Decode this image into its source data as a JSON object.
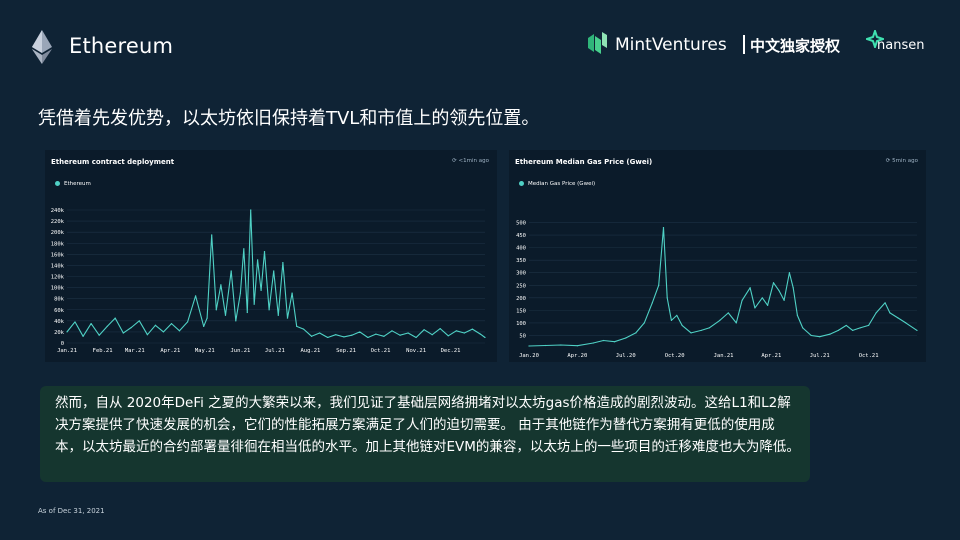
{
  "header": {
    "title": "Ethereum",
    "partner_name": "MintVentures",
    "exclusive_label": "中文独家授权",
    "nansen_name": "nansen"
  },
  "headline": "凭借着先发优势，以太坊依旧保持着TVL和市值上的领先位置。",
  "note": "然而，自从 2020年DeFi 之夏的大繁荣以来，我们见证了基础层网络拥堵对以太坊gas价格造成的剧烈波动。这给L1和L2解决方案提供了快速发展的机会，它们的性能拓展方案满足了人们的迫切需要。 由于其他链作为替代方案拥有更低的使用成本，以太坊最近的合约部署量徘徊在相当低的水平。加上其他链对EVM的兼容，以太坊上的一些项目的迁移难度也大为降低。",
  "footnote": "As of Dec 31, 2021",
  "colors": {
    "line": "#4fd1c5",
    "panel": "#0b1b2a",
    "background": "#0f2335",
    "note_box": "#15362f"
  },
  "chart_data": [
    {
      "type": "line",
      "title": "Ethereum contract deployment",
      "updated": "<1min ago",
      "legend": "Ethereum",
      "x_ticks": [
        "Jan.21",
        "Feb.21",
        "Mar.21",
        "Apr.21",
        "May.21",
        "Jun.21",
        "Jul.21",
        "Aug.21",
        "Sep.21",
        "Oct.21",
        "Nov.21",
        "Dec.21"
      ],
      "y_ticks": [
        "0",
        "20k",
        "40k",
        "60k",
        "80k",
        "100k",
        "120k",
        "140k",
        "160k",
        "180k",
        "200k",
        "220k",
        "240k"
      ],
      "ylim": [
        0,
        240000
      ],
      "x_range": [
        "2021-01-01",
        "2021-12-31"
      ],
      "x": [
        "2021-01-01",
        "2021-01-08",
        "2021-01-15",
        "2021-01-22",
        "2021-01-29",
        "2021-02-05",
        "2021-02-12",
        "2021-02-19",
        "2021-02-26",
        "2021-03-05",
        "2021-03-12",
        "2021-03-19",
        "2021-03-26",
        "2021-04-02",
        "2021-04-09",
        "2021-04-16",
        "2021-04-23",
        "2021-04-30",
        "2021-05-03",
        "2021-05-07",
        "2021-05-11",
        "2021-05-15",
        "2021-05-19",
        "2021-05-24",
        "2021-05-28",
        "2021-06-01",
        "2021-06-04",
        "2021-06-07",
        "2021-06-10",
        "2021-06-13",
        "2021-06-16",
        "2021-06-19",
        "2021-06-22",
        "2021-06-26",
        "2021-06-30",
        "2021-07-04",
        "2021-07-08",
        "2021-07-12",
        "2021-07-16",
        "2021-07-20",
        "2021-07-26",
        "2021-08-02",
        "2021-08-09",
        "2021-08-16",
        "2021-08-23",
        "2021-08-30",
        "2021-09-06",
        "2021-09-13",
        "2021-09-20",
        "2021-09-27",
        "2021-10-04",
        "2021-10-11",
        "2021-10-18",
        "2021-10-25",
        "2021-11-01",
        "2021-11-08",
        "2021-11-15",
        "2021-11-22",
        "2021-11-29",
        "2021-12-06",
        "2021-12-13",
        "2021-12-20",
        "2021-12-27",
        "2021-12-31"
      ],
      "values": [
        20000,
        38000,
        12000,
        35000,
        14000,
        30000,
        45000,
        18000,
        28000,
        40000,
        15000,
        32000,
        20000,
        35000,
        22000,
        38000,
        85000,
        30000,
        45000,
        195000,
        60000,
        105000,
        50000,
        130000,
        40000,
        90000,
        170000,
        55000,
        240000,
        70000,
        150000,
        95000,
        165000,
        60000,
        130000,
        50000,
        145000,
        45000,
        90000,
        30000,
        25000,
        12000,
        18000,
        10000,
        15000,
        11000,
        14000,
        20000,
        10000,
        16000,
        12000,
        22000,
        14000,
        18000,
        10000,
        24000,
        15000,
        26000,
        13000,
        22000,
        18000,
        25000,
        16000,
        10000
      ]
    },
    {
      "type": "line",
      "title": "Ethereum Median Gas Price (Gwei)",
      "updated": "5min ago",
      "legend": "Median Gas Price (Gwei)",
      "x_ticks": [
        "Jan.20",
        "Apr.20",
        "Jul.20",
        "Oct.20",
        "Jan.21",
        "Apr.21",
        "Jul.21",
        "Oct.21"
      ],
      "y_ticks": [
        "50",
        "100",
        "150",
        "200",
        "250",
        "300",
        "350",
        "400",
        "450",
        "500"
      ],
      "ylim": [
        0,
        550
      ],
      "x_range": [
        "2020-01-01",
        "2021-12-31"
      ],
      "x": [
        "2020-01-01",
        "2020-02-01",
        "2020-03-01",
        "2020-04-01",
        "2020-05-01",
        "2020-05-20",
        "2020-06-10",
        "2020-07-01",
        "2020-07-20",
        "2020-08-05",
        "2020-08-20",
        "2020-09-01",
        "2020-09-10",
        "2020-09-17",
        "2020-09-25",
        "2020-10-05",
        "2020-10-15",
        "2020-11-01",
        "2020-11-20",
        "2020-12-05",
        "2020-12-25",
        "2021-01-10",
        "2021-01-25",
        "2021-02-05",
        "2021-02-20",
        "2021-03-01",
        "2021-03-15",
        "2021-03-25",
        "2021-04-05",
        "2021-04-15",
        "2021-04-25",
        "2021-05-05",
        "2021-05-12",
        "2021-05-20",
        "2021-05-30",
        "2021-06-15",
        "2021-07-01",
        "2021-07-20",
        "2021-08-05",
        "2021-08-20",
        "2021-09-01",
        "2021-09-15",
        "2021-10-01",
        "2021-10-15",
        "2021-11-01",
        "2021-11-10",
        "2021-11-25",
        "2021-12-10",
        "2021-12-31"
      ],
      "values": [
        8,
        10,
        12,
        9,
        20,
        30,
        25,
        40,
        60,
        100,
        180,
        250,
        480,
        200,
        110,
        130,
        90,
        60,
        70,
        80,
        110,
        140,
        100,
        190,
        240,
        160,
        200,
        170,
        260,
        230,
        190,
        300,
        240,
        130,
        80,
        50,
        45,
        55,
        70,
        90,
        70,
        80,
        90,
        140,
        180,
        140,
        120,
        100,
        70
      ]
    }
  ]
}
